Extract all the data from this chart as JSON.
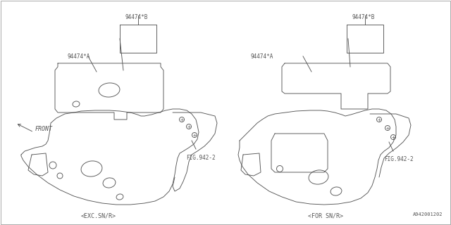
{
  "bg_color": "#ffffff",
  "line_color": "#555555",
  "lw": 0.65,
  "labels": {
    "part_A": "94474*A",
    "part_B": "94474*B",
    "fig": "FIG.942-2",
    "exc": "<EXC.SN/R>",
    "for_snr": "<FOR SN/R>",
    "front": "FRONT",
    "code": "A942001202"
  },
  "font_size": 5.5,
  "border_color": "#888888"
}
